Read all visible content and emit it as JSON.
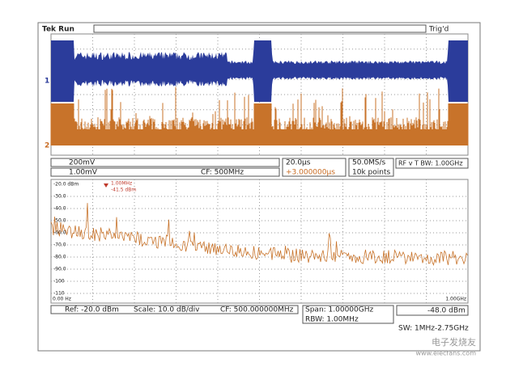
{
  "header": {
    "brand": "Tek Run",
    "status": "Trig'd"
  },
  "channels": {
    "ch1": "1",
    "ch2": "2"
  },
  "readouts": {
    "ch1_scale": "200mV",
    "ch2_scale": "1.00mV",
    "cf": "CF:  500MHz",
    "time_scale": "20.0µs",
    "delay": "+3.000000µs",
    "sample_rate": "50.0MS/s",
    "record": "10k points",
    "rf_bw": "RF v T BW: 1.00GHz"
  },
  "spectrum": {
    "y_labels": [
      "-20.0 dBm",
      "-30.0",
      "-40.0",
      "-50.0",
      "-60.0",
      "-70.0",
      "-80.0",
      "-90.0",
      "-100",
      "-110"
    ],
    "marker": [
      "1.00MHz",
      "-41.5 dBm"
    ],
    "x_start": "0.00 Hz",
    "x_end": "1.00GHz"
  },
  "footer": {
    "ref": "Ref: -20.0 dBm",
    "scale": "Scale: 10.0 dB/div",
    "cf": "CF: 500.000000MHz",
    "span": "Span:  1.00000GHz",
    "rbw": "RBW:  1.00MHz",
    "trigger": "-48.0 dBm",
    "sweep": "SW: 1MHz-2.75GHz"
  },
  "watermark": {
    "site": "电子发烧友",
    "url": "www.elecfans.com"
  }
}
